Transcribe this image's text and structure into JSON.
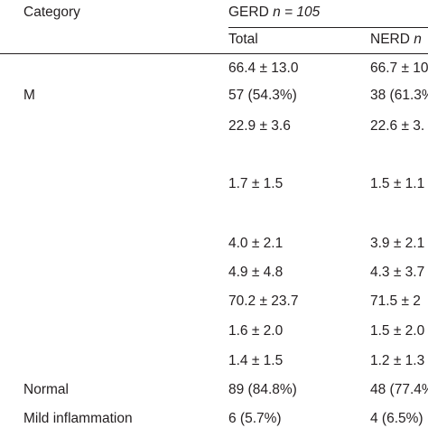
{
  "table": {
    "header": {
      "category_label": "Category",
      "gerd_group_prefix": "GERD ",
      "gerd_group_n": "n = 105",
      "col_total": "Total",
      "col_nerd_prefix": "NERD ",
      "col_nerd_n": "n"
    },
    "rows": [
      {
        "category": "",
        "total": "66.4 ± 13.0",
        "nerd": "66.7 ± 10"
      },
      {
        "category": "M",
        "total": "57 (54.3%)",
        "nerd": "38 (61.3%"
      },
      {
        "category": "",
        "total": "22.9 ± 3.6",
        "nerd": "22.6 ± 3."
      },
      {
        "category": "",
        "total": "1.7 ± 1.5",
        "nerd": "1.5 ± 1.1"
      },
      {
        "category": "",
        "total": "4.0 ± 2.1",
        "nerd": "3.9 ± 2.1"
      },
      {
        "category": "",
        "total": "4.9 ± 4.8",
        "nerd": "4.3 ± 3.7"
      },
      {
        "category": "",
        "total": "70.2 ± 23.7",
        "nerd": "71.5 ± 2"
      },
      {
        "category": "",
        "total": "1.6 ± 2.0",
        "nerd": "1.5 ± 2.0"
      },
      {
        "category": "",
        "total": "1.4 ± 1.5",
        "nerd": "1.2 ± 1.3"
      },
      {
        "category": "Normal",
        "total": "89 (84.8%)",
        "nerd": "48 (77.4%"
      },
      {
        "category": "Mild inflammation",
        "total": "6 (5.7%)",
        "nerd": "4 (6.5%)"
      }
    ]
  }
}
